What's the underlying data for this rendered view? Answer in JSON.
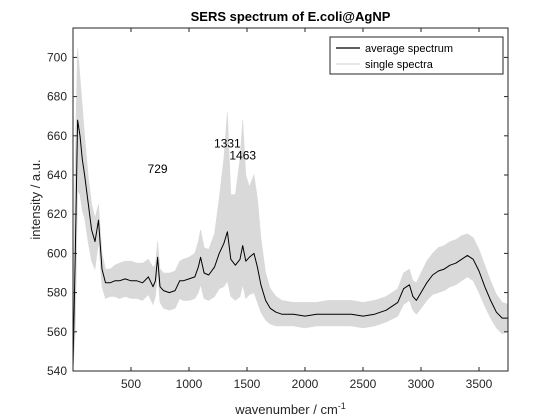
{
  "chart_data": {
    "type": "line",
    "title": "SERS spectrum of E.coli@AgNP",
    "xlabel": "wavenumber / cm",
    "xlabel_superscript": "-1",
    "ylabel": "intensity / a.u.",
    "xlim": [
      0,
      3750
    ],
    "ylim": [
      540,
      715
    ],
    "xticks": [
      500,
      1000,
      1500,
      2000,
      2500,
      3000,
      3500
    ],
    "yticks": [
      540,
      560,
      580,
      600,
      620,
      640,
      660,
      680,
      700
    ],
    "grid": false,
    "legend_position": "top-right",
    "annotations": [
      {
        "text": "729",
        "x": 729,
        "y": 641
      },
      {
        "text": "1331",
        "x": 1331,
        "y": 654
      },
      {
        "text": "1463",
        "x": 1463,
        "y": 648
      }
    ],
    "series": [
      {
        "name": "average spectrum",
        "color": "#000000",
        "x": [
          0,
          20,
          40,
          60,
          80,
          100,
          130,
          160,
          190,
          220,
          250,
          280,
          320,
          360,
          400,
          450,
          500,
          550,
          600,
          650,
          690,
          710,
          729,
          750,
          780,
          830,
          880,
          920,
          950,
          1000,
          1050,
          1080,
          1100,
          1130,
          1170,
          1220,
          1260,
          1300,
          1331,
          1360,
          1400,
          1440,
          1463,
          1490,
          1520,
          1560,
          1590,
          1620,
          1660,
          1700,
          1750,
          1800,
          1900,
          2000,
          2100,
          2200,
          2300,
          2400,
          2500,
          2600,
          2700,
          2800,
          2850,
          2900,
          2930,
          2960,
          3000,
          3050,
          3100,
          3150,
          3200,
          3250,
          3300,
          3350,
          3400,
          3450,
          3500,
          3550,
          3600,
          3650,
          3700,
          3750
        ],
        "y": [
          542,
          600,
          668,
          660,
          648,
          640,
          626,
          612,
          606,
          617,
          592,
          585,
          585,
          586,
          586,
          587,
          586,
          586,
          585,
          588,
          583,
          586,
          598,
          583,
          581,
          580,
          581,
          586,
          586,
          587,
          588,
          593,
          598,
          590,
          589,
          593,
          600,
          605,
          611,
          597,
          594,
          597,
          604,
          596,
          598,
          600,
          593,
          584,
          576,
          572,
          570,
          569,
          569,
          568,
          569,
          569,
          569,
          569,
          568,
          569,
          571,
          575,
          582,
          584,
          578,
          576,
          580,
          585,
          589,
          591,
          592,
          594,
          595,
          597,
          599,
          597,
          591,
          583,
          576,
          570,
          567,
          567
        ]
      },
      {
        "name": "single spectra",
        "color": "#d9d9d9",
        "x": [
          0,
          20,
          40,
          60,
          80,
          100,
          130,
          160,
          190,
          220,
          250,
          280,
          320,
          360,
          400,
          450,
          500,
          550,
          600,
          650,
          690,
          710,
          729,
          750,
          780,
          830,
          880,
          920,
          950,
          1000,
          1050,
          1080,
          1100,
          1130,
          1170,
          1220,
          1260,
          1300,
          1331,
          1360,
          1400,
          1440,
          1463,
          1490,
          1520,
          1560,
          1590,
          1620,
          1660,
          1700,
          1750,
          1800,
          1900,
          2000,
          2100,
          2200,
          2300,
          2400,
          2500,
          2600,
          2700,
          2800,
          2850,
          2900,
          2930,
          2960,
          3000,
          3050,
          3100,
          3150,
          3200,
          3250,
          3300,
          3350,
          3400,
          3450,
          3500,
          3550,
          3600,
          3650,
          3700,
          3750
        ],
        "y_upper": [
          560,
          650,
          705,
          690,
          675,
          660,
          640,
          625,
          618,
          625,
          600,
          592,
          592,
          594,
          595,
          596,
          596,
          595,
          595,
          597,
          593,
          594,
          606,
          592,
          590,
          590,
          591,
          596,
          597,
          598,
          600,
          606,
          612,
          603,
          602,
          610,
          628,
          648,
          672,
          630,
          630,
          648,
          668,
          640,
          634,
          640,
          628,
          608,
          590,
          582,
          578,
          576,
          575,
          575,
          575,
          576,
          576,
          576,
          575,
          576,
          578,
          582,
          590,
          592,
          586,
          585,
          590,
          596,
          600,
          603,
          604,
          606,
          607,
          609,
          610,
          608,
          602,
          594,
          586,
          579,
          575,
          574
        ],
        "y_lower": [
          540,
          560,
          632,
          630,
          622,
          618,
          606,
          596,
          592,
          606,
          583,
          577,
          578,
          578,
          577,
          578,
          577,
          577,
          576,
          579,
          574,
          578,
          590,
          575,
          572,
          571,
          572,
          577,
          576,
          576,
          577,
          580,
          584,
          577,
          576,
          578,
          582,
          583,
          586,
          578,
          576,
          578,
          584,
          577,
          579,
          580,
          575,
          570,
          566,
          564,
          563,
          563,
          563,
          562,
          563,
          563,
          563,
          563,
          562,
          563,
          565,
          568,
          574,
          576,
          571,
          569,
          572,
          576,
          579,
          580,
          581,
          583,
          584,
          586,
          588,
          586,
          580,
          573,
          567,
          562,
          559,
          560
        ]
      }
    ]
  }
}
